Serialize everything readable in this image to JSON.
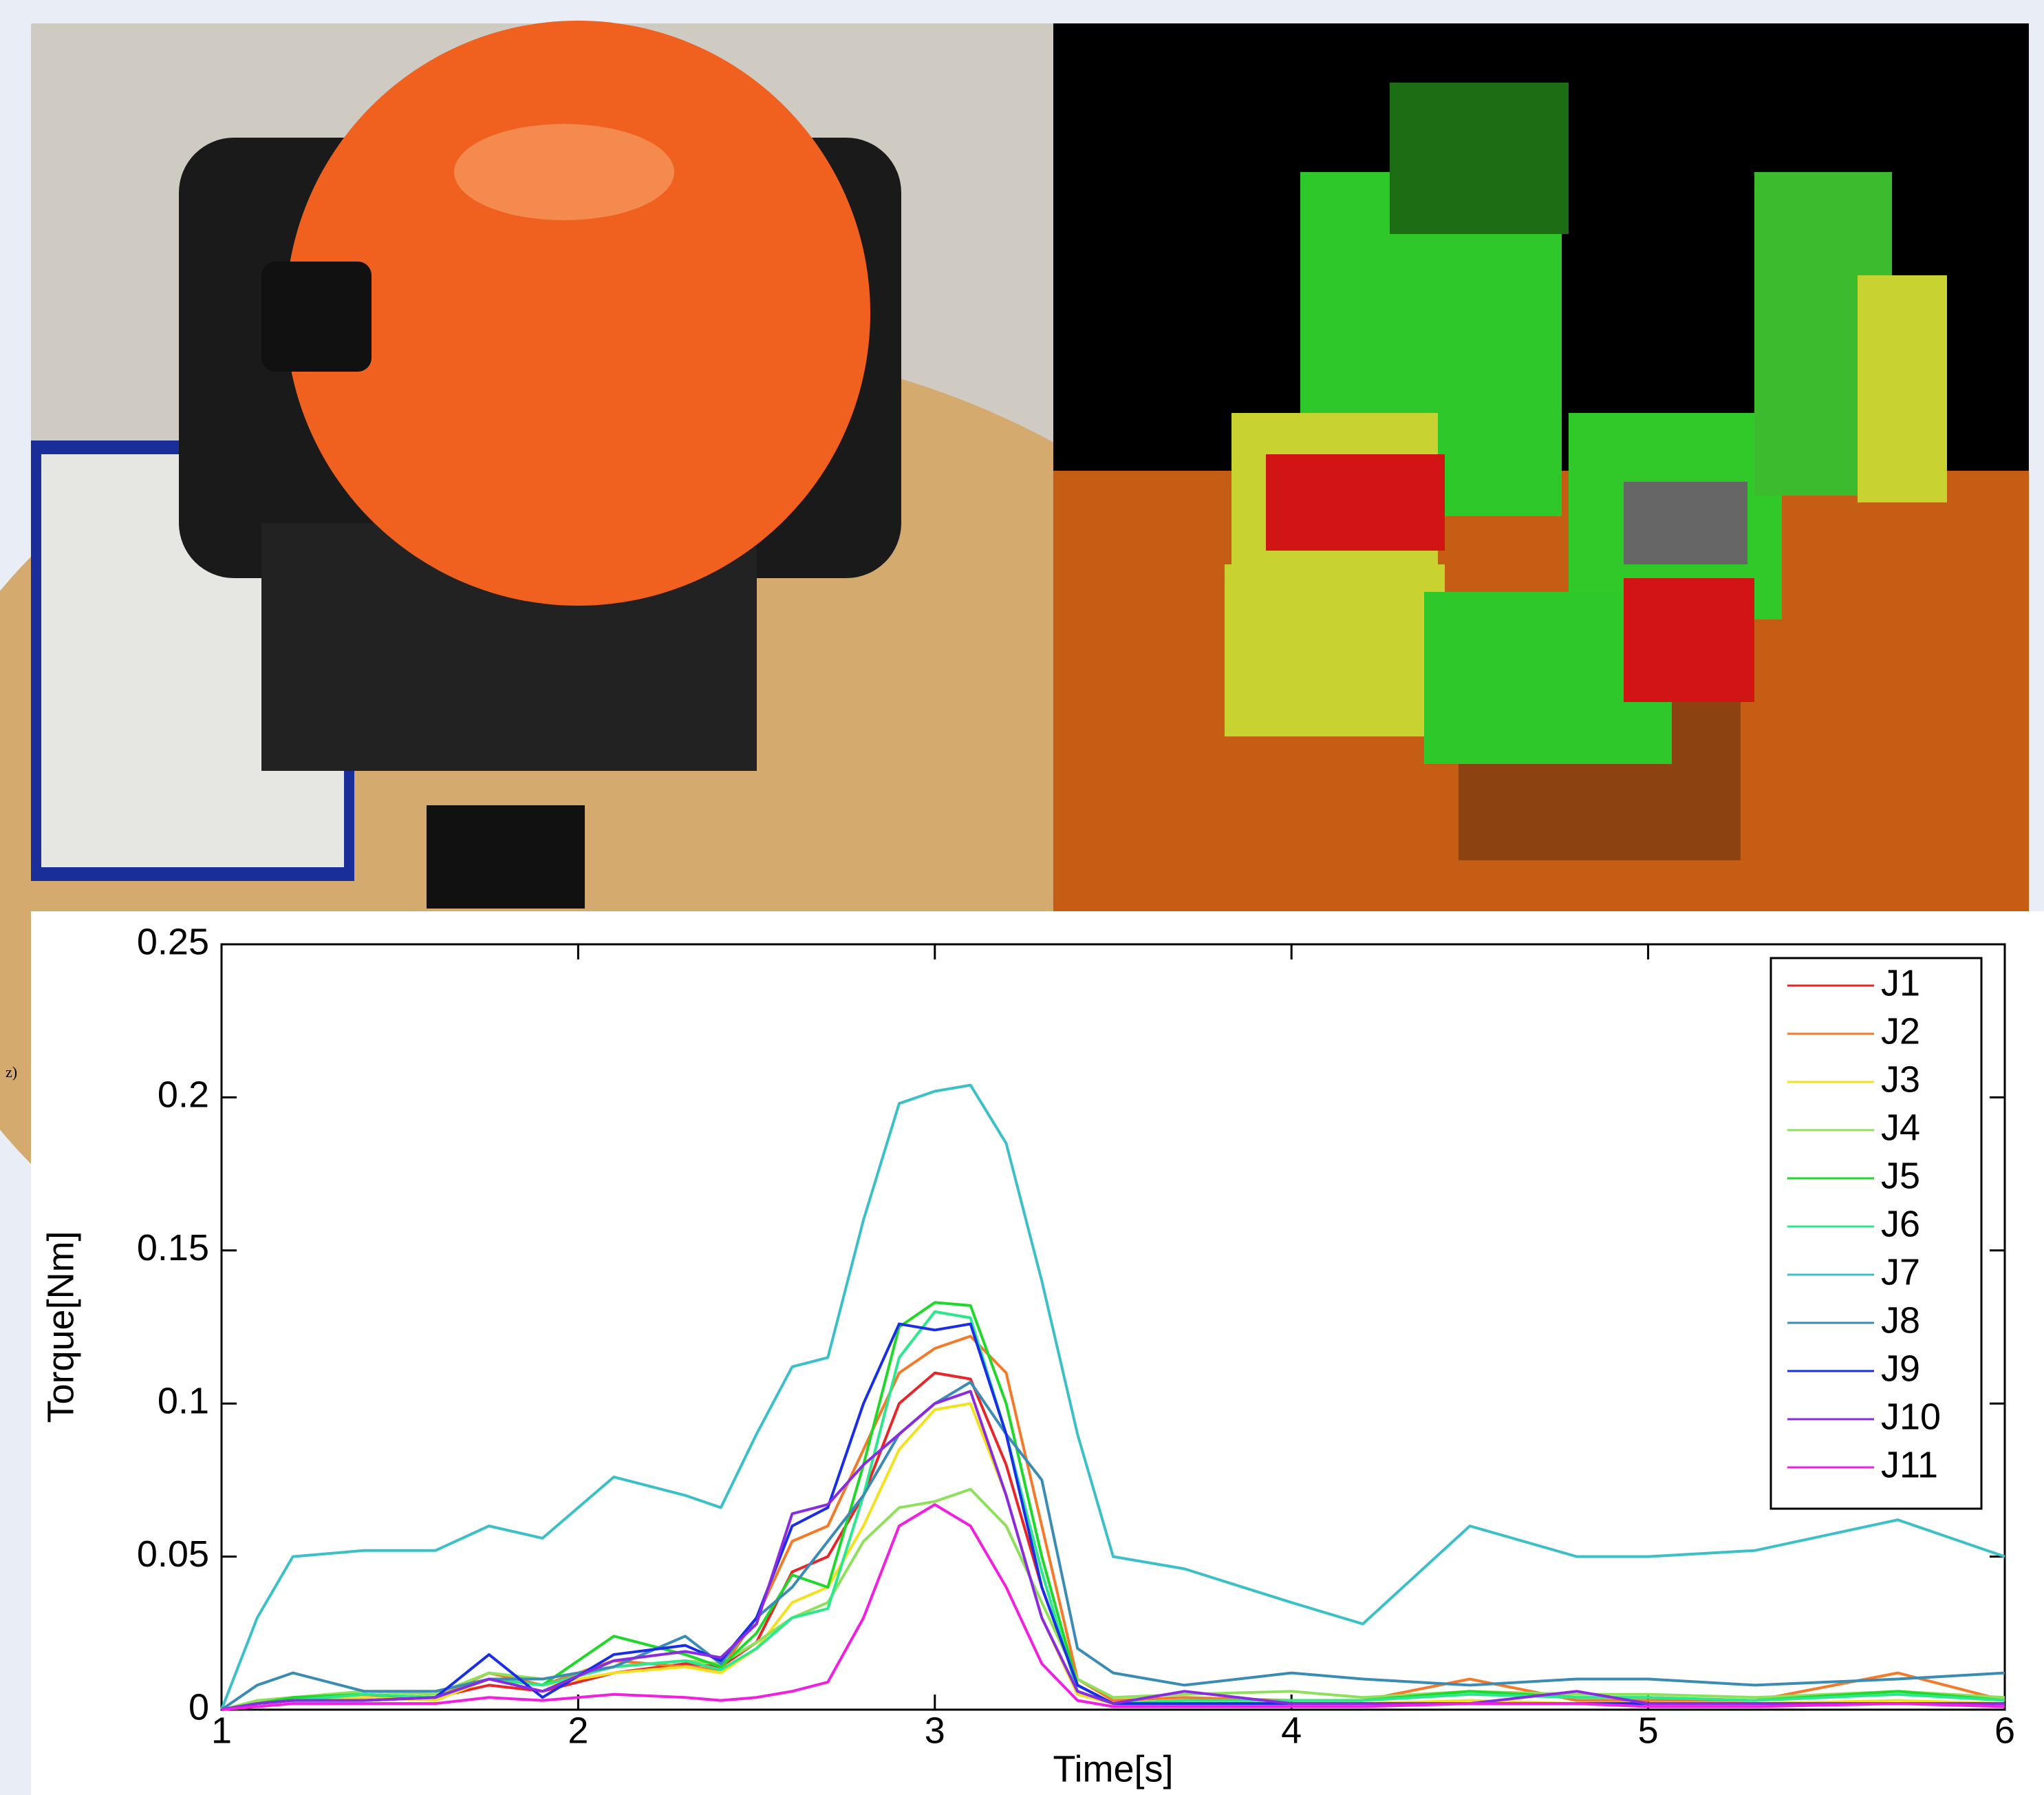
{
  "side_label": "z)",
  "chart_data": {
    "type": "line",
    "x_label": "Time[s]",
    "y_label": "Torque[Nm]",
    "xlim": [
      1,
      6
    ],
    "ylim": [
      0,
      0.25
    ],
    "xticks": [
      1,
      2,
      3,
      4,
      5,
      6
    ],
    "yticks": [
      0,
      0.05,
      0.1,
      0.15,
      0.2,
      0.25
    ],
    "legend": "upper right",
    "x": [
      1,
      1.1,
      1.2,
      1.4,
      1.6,
      1.75,
      1.9,
      2.1,
      2.3,
      2.4,
      2.5,
      2.6,
      2.7,
      2.8,
      2.9,
      3.0,
      3.1,
      3.2,
      3.3,
      3.4,
      3.5,
      3.7,
      4.0,
      4.2,
      4.5,
      4.8,
      5.0,
      5.3,
      5.7,
      6.0
    ],
    "series": [
      {
        "name": "J1",
        "color": "#e8262a",
        "values": [
          0,
          0.002,
          0.003,
          0.004,
          0.004,
          0.008,
          0.006,
          0.012,
          0.015,
          0.014,
          0.022,
          0.045,
          0.05,
          0.07,
          0.1,
          0.11,
          0.108,
          0.08,
          0.04,
          0.008,
          0.002,
          0.002,
          0.002,
          0.002,
          0.002,
          0.002,
          0.002,
          0.002,
          0.002,
          0.002
        ]
      },
      {
        "name": "J2",
        "color": "#f47a2a",
        "values": [
          0,
          0.002,
          0.004,
          0.005,
          0.004,
          0.012,
          0.008,
          0.016,
          0.014,
          0.013,
          0.03,
          0.055,
          0.06,
          0.085,
          0.11,
          0.118,
          0.122,
          0.11,
          0.06,
          0.01,
          0.003,
          0.004,
          0.003,
          0.003,
          0.01,
          0.003,
          0.003,
          0.003,
          0.012,
          0.003
        ]
      },
      {
        "name": "J3",
        "color": "#f2e21e",
        "values": [
          0,
          0.002,
          0.003,
          0.004,
          0.003,
          0.01,
          0.008,
          0.012,
          0.014,
          0.012,
          0.02,
          0.035,
          0.04,
          0.06,
          0.085,
          0.098,
          0.1,
          0.07,
          0.03,
          0.005,
          0.002,
          0.002,
          0.002,
          0.002,
          0.003,
          0.002,
          0.002,
          0.002,
          0.003,
          0.002
        ]
      },
      {
        "name": "J4",
        "color": "#8ee05a",
        "values": [
          0,
          0.003,
          0.004,
          0.006,
          0.005,
          0.012,
          0.01,
          0.014,
          0.016,
          0.015,
          0.022,
          0.03,
          0.035,
          0.055,
          0.066,
          0.068,
          0.072,
          0.06,
          0.035,
          0.01,
          0.004,
          0.005,
          0.006,
          0.004,
          0.006,
          0.005,
          0.005,
          0.004,
          0.006,
          0.004
        ]
      },
      {
        "name": "J5",
        "color": "#1fd82a",
        "values": [
          0,
          0.002,
          0.004,
          0.005,
          0.004,
          0.01,
          0.008,
          0.024,
          0.018,
          0.014,
          0.025,
          0.044,
          0.04,
          0.08,
          0.125,
          0.133,
          0.132,
          0.1,
          0.05,
          0.008,
          0.002,
          0.003,
          0.003,
          0.003,
          0.006,
          0.004,
          0.004,
          0.003,
          0.006,
          0.003
        ]
      },
      {
        "name": "J6",
        "color": "#2ce88c",
        "values": [
          0,
          0.002,
          0.003,
          0.005,
          0.004,
          0.01,
          0.008,
          0.014,
          0.016,
          0.013,
          0.02,
          0.03,
          0.033,
          0.07,
          0.115,
          0.13,
          0.128,
          0.09,
          0.045,
          0.006,
          0.002,
          0.003,
          0.003,
          0.003,
          0.005,
          0.004,
          0.004,
          0.003,
          0.005,
          0.003
        ]
      },
      {
        "name": "J7",
        "color": "#3cc0c8",
        "values": [
          0,
          0.03,
          0.05,
          0.052,
          0.052,
          0.06,
          0.056,
          0.076,
          0.07,
          0.066,
          0.09,
          0.112,
          0.115,
          0.16,
          0.198,
          0.202,
          0.204,
          0.185,
          0.14,
          0.09,
          0.05,
          0.046,
          0.035,
          0.028,
          0.06,
          0.05,
          0.05,
          0.052,
          0.062,
          0.05
        ]
      },
      {
        "name": "J8",
        "color": "#3a8cb4",
        "values": [
          0,
          0.008,
          0.012,
          0.006,
          0.006,
          0.01,
          0.01,
          0.014,
          0.024,
          0.015,
          0.03,
          0.04,
          0.055,
          0.07,
          0.09,
          0.1,
          0.107,
          0.09,
          0.075,
          0.02,
          0.012,
          0.008,
          0.012,
          0.01,
          0.008,
          0.01,
          0.01,
          0.008,
          0.01,
          0.012
        ]
      },
      {
        "name": "J9",
        "color": "#1a2ee8",
        "values": [
          0,
          0.002,
          0.003,
          0.003,
          0.004,
          0.018,
          0.004,
          0.018,
          0.021,
          0.016,
          0.03,
          0.06,
          0.066,
          0.1,
          0.126,
          0.124,
          0.126,
          0.09,
          0.04,
          0.008,
          0.002,
          0.002,
          0.002,
          0.002,
          0.002,
          0.002,
          0.002,
          0.002,
          0.002,
          0.002
        ]
      },
      {
        "name": "J10",
        "color": "#8a2be2",
        "values": [
          0,
          0.002,
          0.003,
          0.003,
          0.004,
          0.01,
          0.006,
          0.016,
          0.019,
          0.017,
          0.028,
          0.064,
          0.067,
          0.08,
          0.09,
          0.1,
          0.104,
          0.07,
          0.03,
          0.006,
          0.002,
          0.006,
          0.002,
          0.002,
          0.002,
          0.006,
          0.002,
          0.002,
          0.002,
          0.002
        ]
      },
      {
        "name": "J11",
        "color": "#f21ee0",
        "values": [
          0,
          0.001,
          0.002,
          0.002,
          0.002,
          0.004,
          0.003,
          0.005,
          0.004,
          0.003,
          0.004,
          0.006,
          0.009,
          0.03,
          0.06,
          0.067,
          0.06,
          0.04,
          0.015,
          0.003,
          0.001,
          0.001,
          0.001,
          0.001,
          0.002,
          0.002,
          0.001,
          0.001,
          0.002,
          0.001
        ]
      }
    ]
  }
}
